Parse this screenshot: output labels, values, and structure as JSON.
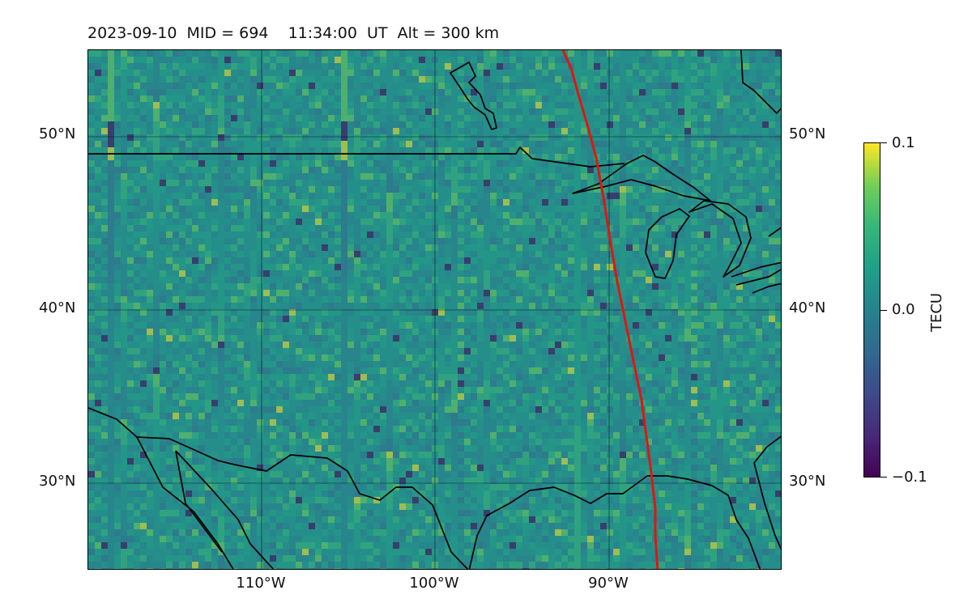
{
  "title": {
    "date": "2023-09-10",
    "mid": "MID = 694",
    "time": "11:34:00  UT",
    "alt": "Alt = 300 km"
  },
  "map": {
    "lat_labels": [
      "50°N",
      "40°N",
      "30°N"
    ],
    "lon_labels": [
      "110°W",
      "100°W",
      "90°W"
    ],
    "extent": {
      "lon_min": -120,
      "lon_max": -80,
      "lat_min": 25,
      "lat_max": 55
    },
    "gridlines": true,
    "path_color": "#e0160f",
    "coastline_color": "#000000"
  },
  "colorbar": {
    "label": "TECU",
    "ticks": [
      "0.1",
      "0.0",
      "−0.1"
    ],
    "vmin": -0.1,
    "vmax": 0.1,
    "colormap": "viridis"
  }
}
